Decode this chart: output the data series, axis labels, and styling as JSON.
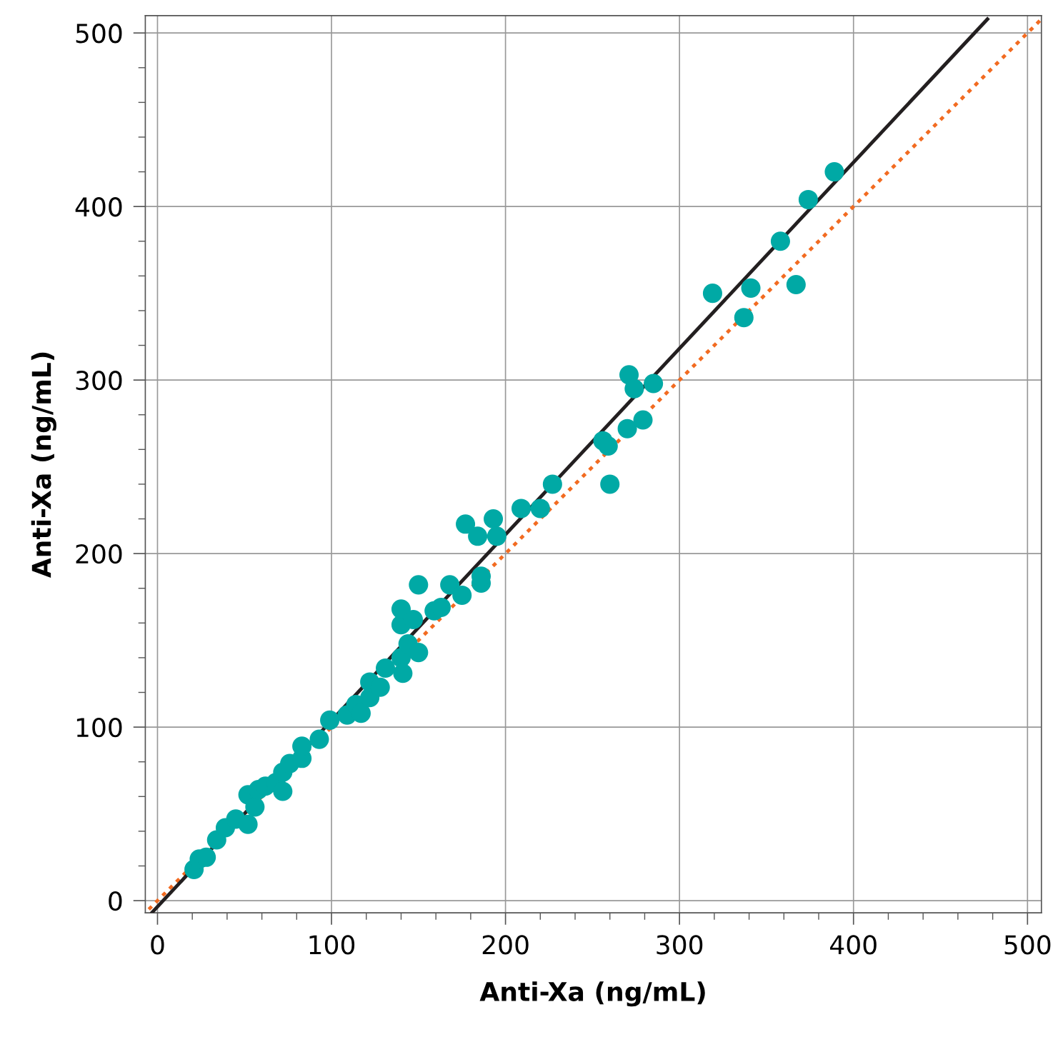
{
  "chart_data": {
    "type": "scatter",
    "xlabel": "Anti-Xa (ng/mL)",
    "ylabel": "Anti-Xa (ng/mL)",
    "xlim": [
      -7,
      508
    ],
    "ylim": [
      -7,
      510
    ],
    "xticks": [
      0,
      {
        "value": 20,
        "label": null
      },
      {
        "value": 40,
        "label": null
      },
      {
        "value": 60,
        "label": null
      },
      {
        "value": 80,
        "label": null
      },
      100,
      {
        "value": 120,
        "label": null
      },
      {
        "value": 140,
        "label": null
      },
      {
        "value": 160,
        "label": null
      },
      {
        "value": 180,
        "label": null
      },
      200,
      {
        "value": 220,
        "label": null
      },
      {
        "value": 240,
        "label": null
      },
      {
        "value": 260,
        "label": null
      },
      {
        "value": 280,
        "label": null
      },
      300,
      {
        "value": 320,
        "label": null
      },
      {
        "value": 340,
        "label": null
      },
      {
        "value": 360,
        "label": null
      },
      {
        "value": 380,
        "label": null
      },
      400,
      {
        "value": 420,
        "label": null
      },
      {
        "value": 440,
        "label": null
      },
      {
        "value": 460,
        "label": null
      },
      {
        "value": 480,
        "label": null
      },
      500
    ],
    "yticks": [
      0,
      {
        "value": 20,
        "label": null
      },
      {
        "value": 40,
        "label": null
      },
      {
        "value": 60,
        "label": null
      },
      {
        "value": 80,
        "label": null
      },
      100,
      {
        "value": 120,
        "label": null
      },
      {
        "value": 140,
        "label": null
      },
      {
        "value": 160,
        "label": null
      },
      {
        "value": 180,
        "label": null
      },
      200,
      {
        "value": 220,
        "label": null
      },
      {
        "value": 240,
        "label": null
      },
      {
        "value": 260,
        "label": null
      },
      {
        "value": 280,
        "label": null
      },
      300,
      {
        "value": 320,
        "label": null
      },
      {
        "value": 340,
        "label": null
      },
      {
        "value": 360,
        "label": null
      },
      {
        "value": 380,
        "label": null
      },
      400,
      {
        "value": 420,
        "label": null
      },
      {
        "value": 440,
        "label": null
      },
      {
        "value": 460,
        "label": null
      },
      {
        "value": 480,
        "label": null
      },
      500
    ],
    "grid": true,
    "series": [
      {
        "type": "line",
        "color": "#f26b21",
        "line_style": "dotted",
        "marker": "none",
        "x": [
          -5,
          508
        ],
        "values": [
          -5,
          508
        ]
      },
      {
        "type": "line",
        "color": "#231f20",
        "line_style": "solid",
        "marker": "none",
        "x": [
          -3,
          477
        ],
        "values": [
          -6.7,
          508
        ]
      },
      {
        "color": "#00a9a5",
        "marker": "circle",
        "x": [
          21,
          24,
          28,
          34,
          39,
          45,
          52,
          52,
          56,
          58,
          62,
          68,
          72,
          72,
          76,
          83,
          83,
          93,
          99,
          109,
          114,
          117,
          122,
          122,
          128,
          131,
          140,
          141,
          140,
          140,
          144,
          147,
          150,
          150,
          159,
          163,
          168,
          175,
          177,
          184,
          186,
          186,
          193,
          195,
          209,
          220,
          227,
          256,
          259,
          260,
          270,
          271,
          274,
          279,
          285,
          319,
          337,
          341,
          358,
          367,
          374,
          389
        ],
        "values": [
          18,
          24,
          25,
          35,
          42,
          47,
          44,
          61,
          54,
          64,
          66,
          68,
          63,
          74,
          79,
          82,
          89,
          93,
          104,
          107,
          113,
          108,
          117,
          126,
          123,
          134,
          140,
          131,
          159,
          168,
          148,
          162,
          143,
          182,
          167,
          169,
          182,
          176,
          217,
          210,
          183,
          187,
          220,
          210,
          226,
          226,
          240,
          265,
          262,
          240,
          272,
          303,
          295,
          277,
          298,
          350,
          336,
          353,
          380,
          355,
          404,
          420
        ]
      }
    ]
  }
}
